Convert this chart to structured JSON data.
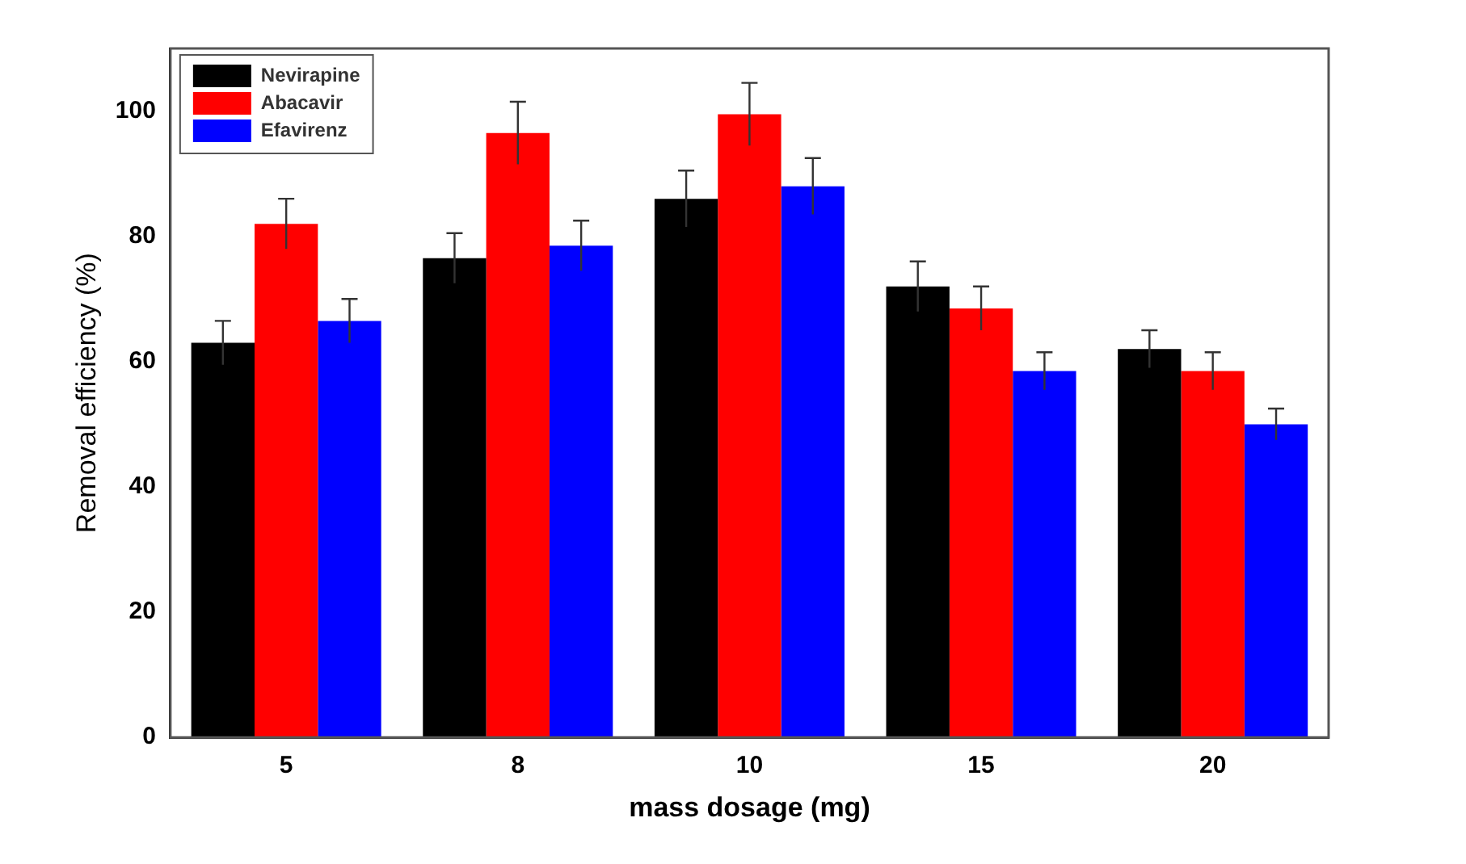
{
  "chart_data": {
    "type": "bar",
    "xlabel": "mass dosage (mg)",
    "ylabel": "Removal efficiency (%)",
    "categories": [
      "5",
      "8",
      "10",
      "15",
      "20"
    ],
    "series": [
      {
        "name": "Nevirapine",
        "color": "#000000",
        "values": [
          63,
          76.5,
          86,
          72,
          62
        ],
        "errors": [
          3.5,
          4,
          4.5,
          4,
          3
        ]
      },
      {
        "name": "Abacavir",
        "color": "#ff0000",
        "values": [
          82,
          96.5,
          99.5,
          68.5,
          58.5
        ],
        "errors": [
          4,
          5,
          5,
          3.5,
          3
        ]
      },
      {
        "name": "Efavirenz",
        "color": "#0000ff",
        "values": [
          66.5,
          78.5,
          88,
          58.5,
          50
        ],
        "errors": [
          3.5,
          4,
          4.5,
          3,
          2.5
        ]
      }
    ],
    "ylim": [
      0,
      110
    ],
    "yticks": [
      0,
      20,
      40,
      60,
      80,
      100
    ],
    "grid": false,
    "legend": "top left"
  }
}
